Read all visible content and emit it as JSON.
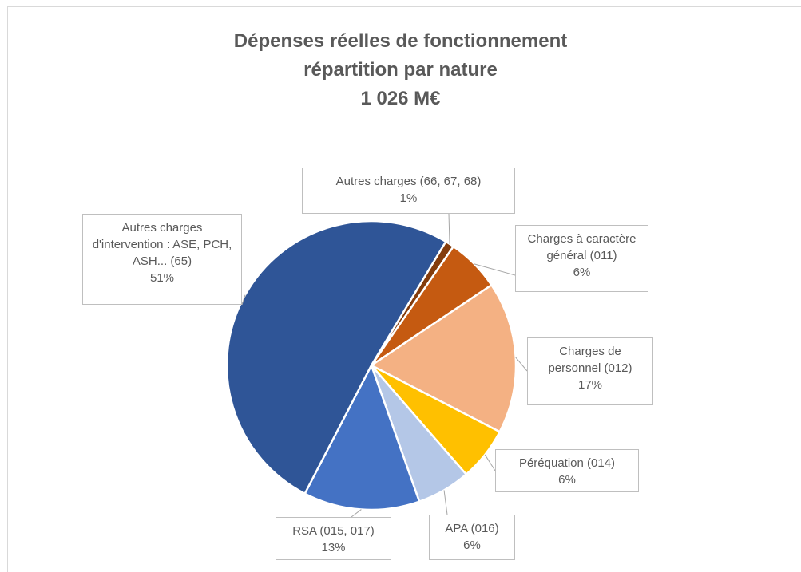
{
  "chart_data": {
    "type": "pie",
    "title_lines": [
      "Dépenses réelles de fonctionnement",
      "répartition par nature",
      "1 026 M€"
    ],
    "categories": [
      "Autres charges (66, 67, 68)",
      "Charges à caractère général (011)",
      "Charges de personnel (012)",
      "Péréquation (014)",
      "APA (016)",
      "RSA (015, 017)",
      "Autres charges d'intervention : ASE, PCH, ASH... (65)"
    ],
    "values": [
      1,
      6,
      17,
      6,
      6,
      13,
      51
    ],
    "value_labels": [
      "1%",
      "6%",
      "17%",
      "6%",
      "6%",
      "13%",
      "51%"
    ],
    "colors": [
      "#843c0c",
      "#c55a11",
      "#f4b183",
      "#ffc000",
      "#b4c7e7",
      "#4472c4",
      "#2f5597"
    ]
  }
}
